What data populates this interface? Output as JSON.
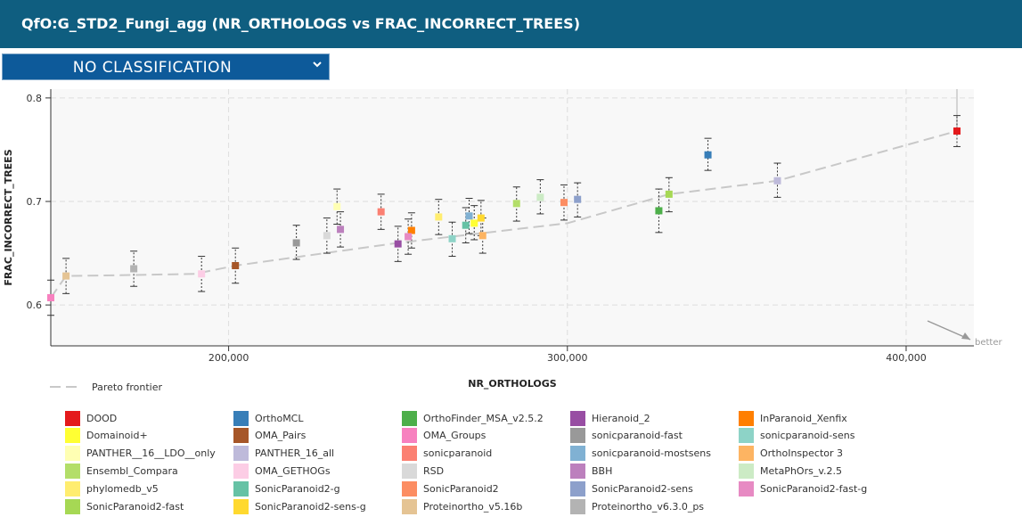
{
  "header": {
    "title": "QfO:G_STD2_Fungi_agg (NR_ORTHOLOGS vs FRAC_INCORRECT_TREES)"
  },
  "classification_select": {
    "value": "NO CLASSIFICATION"
  },
  "icons": {
    "select_caret": "chevron-down-icon",
    "better_arrow": "arrow-down-right-icon"
  },
  "chart_data": {
    "type": "scatter",
    "xlabel": "NR_ORTHOLOGS",
    "ylabel": "FRAC_INCORRECT_TREES",
    "xlim": [
      147500,
      420000
    ],
    "ylim": [
      0.5605,
      0.8085
    ],
    "x_ticks": [
      200000,
      300000,
      400000
    ],
    "x_tick_labels": [
      "200,000",
      "300,000",
      "400,000"
    ],
    "y_ticks": [
      0.6,
      0.7,
      0.8
    ],
    "y_tick_labels": [
      "0.6",
      "0.7",
      "0.8"
    ],
    "grid": true,
    "better_label": "better",
    "pareto_label": "Pareto frontier",
    "pareto_frontier": [
      [
        147500,
        0.607
      ],
      [
        152000,
        0.628
      ],
      [
        172000,
        0.629
      ],
      [
        190000,
        0.63
      ],
      [
        202000,
        0.638
      ],
      [
        250000,
        0.66
      ],
      [
        300000,
        0.679
      ],
      [
        330000,
        0.707
      ],
      [
        362000,
        0.72
      ],
      [
        415000,
        0.768
      ]
    ],
    "series": [
      {
        "name": "DOOD",
        "color": "#e41a1c",
        "x": 415000,
        "y": 0.768,
        "err": [
          0.753,
          0.783
        ]
      },
      {
        "name": "OrthoMCL",
        "color": "#377eb8",
        "x": 341500,
        "y": 0.745,
        "err": [
          0.73,
          0.761
        ]
      },
      {
        "name": "OrthoFinder_MSA_v2.5.2",
        "color": "#4daf4a",
        "x": 327000,
        "y": 0.691,
        "err": [
          0.67,
          0.712
        ]
      },
      {
        "name": "Hieranoid_2",
        "color": "#984ea3",
        "x": 250000,
        "y": 0.659,
        "err": [
          0.642,
          0.676
        ]
      },
      {
        "name": "InParanoid_Xenfix",
        "color": "#ff7f00",
        "x": 254000,
        "y": 0.672,
        "err": [
          0.655,
          0.689
        ]
      },
      {
        "name": "Domainoid+",
        "color": "#ffff33",
        "x": 272500,
        "y": 0.679,
        "err": [
          0.663,
          0.696
        ]
      },
      {
        "name": "OMA_Pairs",
        "color": "#a65628",
        "x": 202000,
        "y": 0.638,
        "err": [
          0.621,
          0.655
        ]
      },
      {
        "name": "OMA_Groups",
        "color": "#f781bf",
        "x": 147500,
        "y": 0.607,
        "err": [
          0.59,
          0.624
        ]
      },
      {
        "name": "sonicparanoid-fast",
        "color": "#999999",
        "x": 220000,
        "y": 0.66,
        "err": [
          0.644,
          0.677
        ]
      },
      {
        "name": "sonicparanoid-sens",
        "color": "#8dd3c7",
        "x": 266000,
        "y": 0.664,
        "err": [
          0.647,
          0.68
        ]
      },
      {
        "name": "PANTHER__16__LDO__only",
        "color": "#ffffb3",
        "x": 232000,
        "y": 0.695,
        "err": [
          0.678,
          0.712
        ]
      },
      {
        "name": "PANTHER_16_all",
        "color": "#bebada",
        "x": 362000,
        "y": 0.72,
        "err": [
          0.704,
          0.737
        ]
      },
      {
        "name": "sonicparanoid",
        "color": "#fb8072",
        "x": 245000,
        "y": 0.69,
        "err": [
          0.673,
          0.707
        ]
      },
      {
        "name": "sonicparanoid-mostsens",
        "color": "#80b1d3",
        "x": 271000,
        "y": 0.686,
        "err": [
          0.669,
          0.703
        ]
      },
      {
        "name": "OrthoInspector 3",
        "color": "#fdb462",
        "x": 275000,
        "y": 0.667,
        "err": [
          0.65,
          0.684
        ]
      },
      {
        "name": "Ensembl_Compara",
        "color": "#b3de69",
        "x": 285000,
        "y": 0.698,
        "err": [
          0.681,
          0.714
        ]
      },
      {
        "name": "OMA_GETHOGs",
        "color": "#fccde5",
        "x": 192000,
        "y": 0.63,
        "err": [
          0.613,
          0.647
        ]
      },
      {
        "name": "RSD",
        "color": "#d9d9d9",
        "x": 229000,
        "y": 0.667,
        "err": [
          0.65,
          0.684
        ]
      },
      {
        "name": "BBH",
        "color": "#bc80bd",
        "x": 233000,
        "y": 0.673,
        "err": [
          0.656,
          0.69
        ]
      },
      {
        "name": "MetaPhOrs_v.2.5",
        "color": "#ccebc5",
        "x": 292000,
        "y": 0.704,
        "err": [
          0.688,
          0.721
        ]
      },
      {
        "name": "phylomedb_v5",
        "color": "#ffed6f",
        "x": 262000,
        "y": 0.685,
        "err": [
          0.668,
          0.702
        ]
      },
      {
        "name": "SonicParanoid2-g",
        "color": "#66c2a5",
        "x": 270000,
        "y": 0.677,
        "err": [
          0.66,
          0.694
        ]
      },
      {
        "name": "SonicParanoid2",
        "color": "#fc8d62",
        "x": 299000,
        "y": 0.699,
        "err": [
          0.682,
          0.716
        ]
      },
      {
        "name": "SonicParanoid2-sens",
        "color": "#8da0cb",
        "x": 303000,
        "y": 0.702,
        "err": [
          0.685,
          0.718
        ]
      },
      {
        "name": "SonicParanoid2-fast-g",
        "color": "#e78ac3",
        "x": 253000,
        "y": 0.666,
        "err": [
          0.649,
          0.683
        ]
      },
      {
        "name": "SonicParanoid2-fast",
        "color": "#a6d854",
        "x": 330000,
        "y": 0.707,
        "err": [
          0.69,
          0.723
        ]
      },
      {
        "name": "SonicParanoid2-sens-g",
        "color": "#ffd92f",
        "x": 274500,
        "y": 0.684,
        "err": [
          0.667,
          0.701
        ]
      },
      {
        "name": "Proteinortho_v5.16b",
        "color": "#e5c494",
        "x": 152000,
        "y": 0.628,
        "err": [
          0.611,
          0.645
        ]
      },
      {
        "name": "Proteinortho_v6.3.0_ps",
        "color": "#b3b3b3",
        "x": 172000,
        "y": 0.635,
        "err": [
          0.618,
          0.652
        ]
      }
    ]
  }
}
